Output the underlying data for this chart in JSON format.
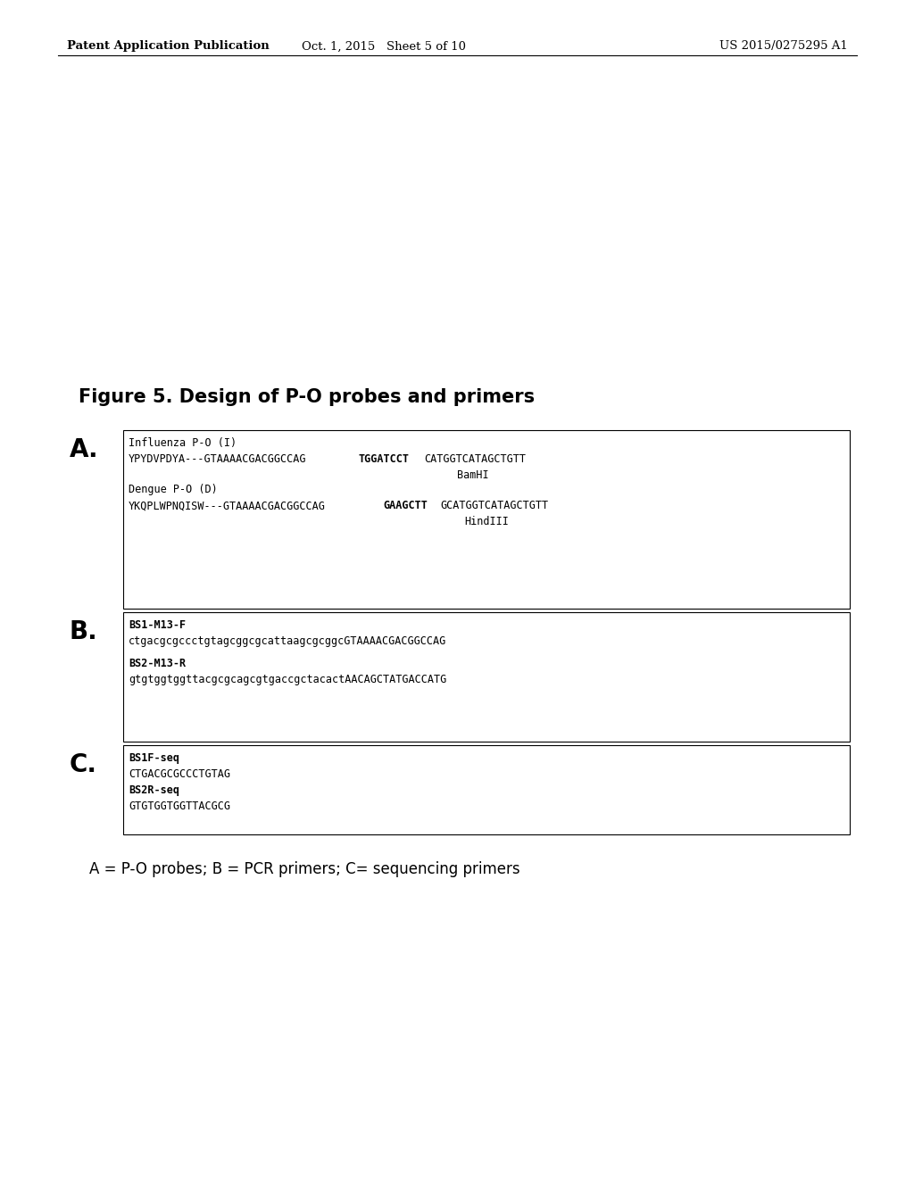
{
  "header_left": "Patent Application Publication",
  "header_center": "Oct. 1, 2015   Sheet 5 of 10",
  "header_right": "US 2015/0275295 A1",
  "figure_title": "Figure 5. Design of P-O probes and primers",
  "caption": "A = P-O probes; B = PCR primers; C= sequencing primers",
  "bg_color": "#ffffff",
  "text_color": "#000000",
  "header_fontsize": 9.5,
  "title_fontsize": 15,
  "label_fontsize_A": 20,
  "label_fontsize_BC": 20,
  "content_fontsize": 8.5,
  "caption_fontsize": 12,
  "seq1_before": "YPYDVPDYA---GTAAAACGACGGCCAG",
  "seq1_bold": "TGGATCCT",
  "seq1_after": "CATGGTCATAGCTGTT",
  "seq2_before": "YKQPLWPNQISW---GTAAAACGACGGCCAG",
  "seq2_bold": "GAAGCTT",
  "seq2_after": "GCATGGTCATAGCTGTT"
}
